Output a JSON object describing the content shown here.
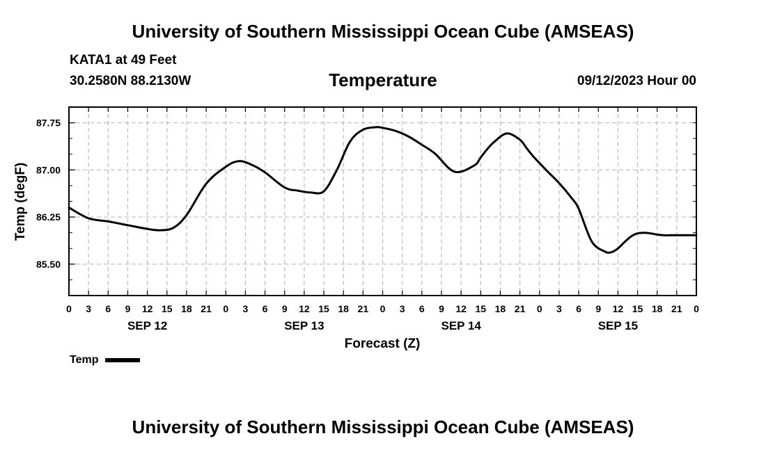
{
  "header": {
    "title": "University of Southern Mississippi Ocean Cube (AMSEAS)",
    "station": "KATA1 at 49 Feet",
    "coords": "30.2580N  88.2130W",
    "variable_title": "Temperature",
    "date": "09/12/2023 Hour 00"
  },
  "footer": {
    "title": "University of Southern Mississippi Ocean Cube (AMSEAS)"
  },
  "legend": {
    "label": "Temp"
  },
  "chart_data": {
    "type": "line",
    "title": "Temperature",
    "xlabel": "Forecast (Z)",
    "ylabel": "Temp (degF)",
    "x_unit": "hours from 09/12/2023 00Z",
    "xlim": [
      0,
      96
    ],
    "ylim": [
      85.0,
      88.0
    ],
    "y_ticks": [
      85.5,
      86.25,
      87.0,
      87.75
    ],
    "y_tick_labels": [
      "85.50",
      "86.25",
      "87.00",
      "87.75"
    ],
    "x_ticks": [
      0,
      3,
      6,
      9,
      12,
      15,
      18,
      21,
      24,
      27,
      30,
      33,
      36,
      39,
      42,
      45,
      48,
      51,
      54,
      57,
      60,
      63,
      66,
      69,
      72,
      75,
      78,
      81,
      84,
      87,
      90,
      93,
      96
    ],
    "x_tick_labels": [
      "0",
      "3",
      "6",
      "9",
      "12",
      "15",
      "18",
      "21",
      "0",
      "3",
      "6",
      "9",
      "12",
      "15",
      "18",
      "21",
      "0",
      "3",
      "6",
      "9",
      "12",
      "15",
      "18",
      "21",
      "0",
      "3",
      "6",
      "9",
      "12",
      "15",
      "18",
      "21",
      "0"
    ],
    "day_labels": [
      {
        "hour": 12,
        "label": "SEP 12"
      },
      {
        "hour": 36,
        "label": "SEP 13"
      },
      {
        "hour": 60,
        "label": "SEP 14"
      },
      {
        "hour": 84,
        "label": "SEP 15"
      }
    ],
    "grid": true,
    "series": [
      {
        "name": "Temp",
        "x": [
          0,
          3,
          6,
          9,
          12,
          14,
          16,
          18,
          21,
          24,
          26,
          28,
          30,
          33,
          35,
          37,
          39,
          41,
          43,
          45,
          47,
          48,
          50,
          52,
          54,
          56,
          59,
          62,
          63,
          64,
          65,
          67,
          69,
          70,
          71,
          73,
          75,
          77,
          78,
          80,
          82,
          83,
          84,
          85,
          86,
          87,
          88,
          89,
          90,
          91,
          92,
          93,
          94,
          95,
          96
        ],
        "values": [
          86.4,
          86.23,
          86.18,
          86.12,
          86.06,
          86.04,
          86.08,
          86.28,
          86.78,
          87.05,
          87.14,
          87.08,
          86.96,
          86.72,
          86.67,
          86.64,
          86.66,
          87.0,
          87.45,
          87.64,
          87.68,
          87.67,
          87.62,
          87.53,
          87.4,
          87.26,
          86.97,
          87.07,
          87.2,
          87.33,
          87.44,
          87.58,
          87.48,
          87.35,
          87.22,
          87.0,
          86.79,
          86.54,
          86.38,
          85.86,
          85.7,
          85.69,
          85.75,
          85.85,
          85.94,
          85.99,
          86.0,
          85.99,
          85.97,
          85.96,
          85.96,
          85.96,
          85.96,
          85.96,
          85.96
        ]
      }
    ]
  }
}
